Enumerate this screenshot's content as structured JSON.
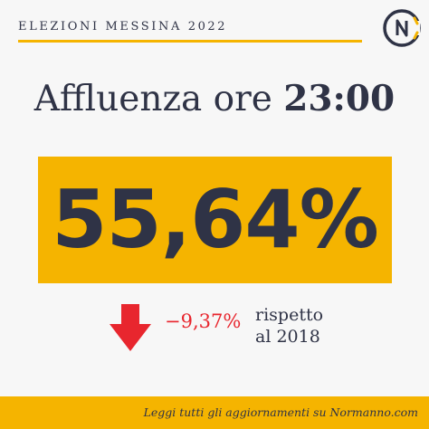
{
  "header": {
    "kicker": "ELEZIONI MESSINA 2022",
    "logo_icon": "normanno-cn-logo-icon"
  },
  "headline": {
    "prefix": "Affluenza ore ",
    "time": "23:00"
  },
  "turnout": {
    "value": "55,64%"
  },
  "change": {
    "icon": "arrow-down-icon",
    "delta": "−9,37%",
    "comparison_line1": "rispetto",
    "comparison_line2": "al 2018"
  },
  "footer": {
    "text": "Leggi tutti gli aggiornamenti su Normanno.com"
  },
  "colors": {
    "accent": "#f5b400",
    "text": "#2f3346",
    "negative": "#e8262e",
    "background": "#f7f7f7"
  }
}
